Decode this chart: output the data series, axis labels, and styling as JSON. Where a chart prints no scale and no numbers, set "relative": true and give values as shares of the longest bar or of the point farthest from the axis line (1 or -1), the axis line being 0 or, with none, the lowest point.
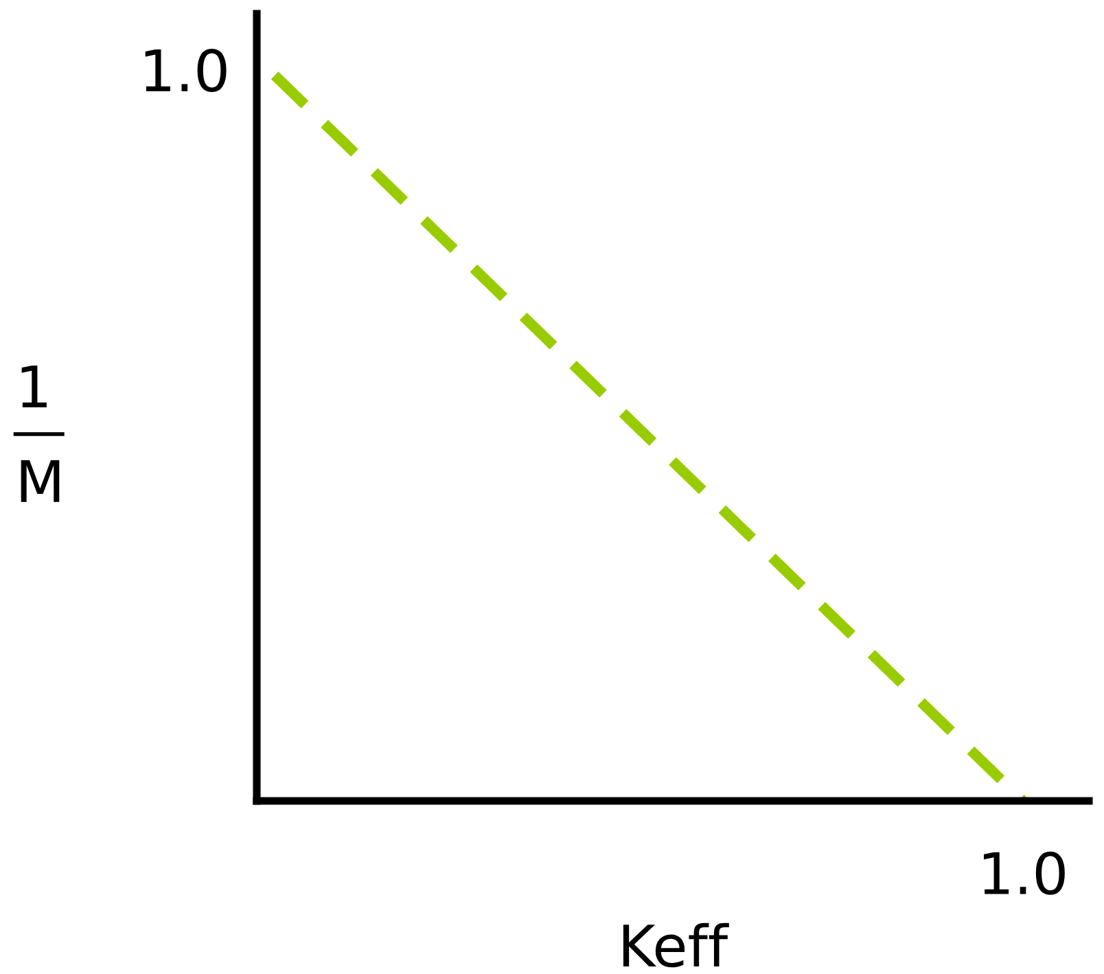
{
  "chart_data": {
    "type": "line",
    "xlabel": "Keff",
    "ylabel": "1\nM",
    "relative": true,
    "categories": [
      null,
      null
    ],
    "series": [
      {
        "color": "#99cc00",
        "values": [
          1,
          0
        ],
        "line_style": "dashed"
      }
    ],
    "annotations": [
      "1.0",
      "1.0"
    ],
    "grid": false,
    "legend": false,
    "marker": "none"
  }
}
